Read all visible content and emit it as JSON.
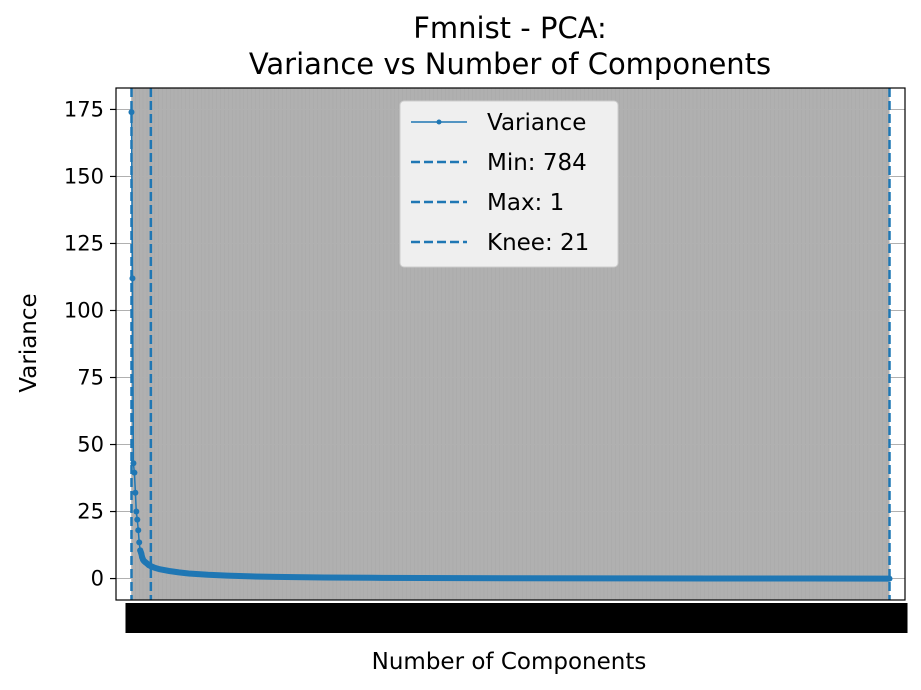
{
  "chart_data": {
    "type": "line",
    "title_line1": "Fmnist - PCA:",
    "title_line2": "Variance vs Number of Components",
    "xlabel": "Number of Components",
    "ylabel": "Variance",
    "xlim": [
      -15,
      800
    ],
    "ylim": [
      -8,
      183
    ],
    "yticks": [
      "0",
      "25",
      "50",
      "75",
      "100",
      "125",
      "150",
      "175"
    ],
    "ytick_values": [
      0,
      25,
      50,
      75,
      100,
      125,
      150,
      175
    ],
    "x_tick_labels_overlapping": "1 to 784 (every integer, rendered as an illegible solid band)",
    "grid": "y-axis major lines plus dense vertical x-grid",
    "legend_position": "top-center",
    "colors": {
      "series": "#1f77b4",
      "shade": "#b0b0b0"
    },
    "series": [
      {
        "name": "Variance",
        "x": [
          1,
          2,
          3,
          4,
          5,
          6,
          7,
          8,
          9,
          10,
          11,
          12,
          13,
          14,
          15,
          16,
          17,
          18,
          19,
          20,
          21,
          25,
          30,
          40,
          50,
          60,
          80,
          100,
          125,
          150,
          200,
          250,
          300,
          400,
          500,
          600,
          700,
          784
        ],
        "values": [
          174,
          112,
          43,
          39.5,
          32,
          25,
          22,
          18,
          13.5,
          10.5,
          9.5,
          8,
          7,
          6.5,
          6.2,
          5.9,
          5.6,
          5.3,
          5.0,
          4.8,
          4.6,
          4.0,
          3.5,
          2.8,
          2.3,
          1.9,
          1.4,
          1.1,
          0.8,
          0.6,
          0.4,
          0.3,
          0.2,
          0.1,
          0.05,
          0.03,
          0.01,
          0.0
        ]
      }
    ],
    "vlines": [
      {
        "name": "Min: 784",
        "x": 784
      },
      {
        "name": "Max: 1",
        "x": 1
      },
      {
        "name": "Knee: 21",
        "x": 21
      }
    ]
  }
}
